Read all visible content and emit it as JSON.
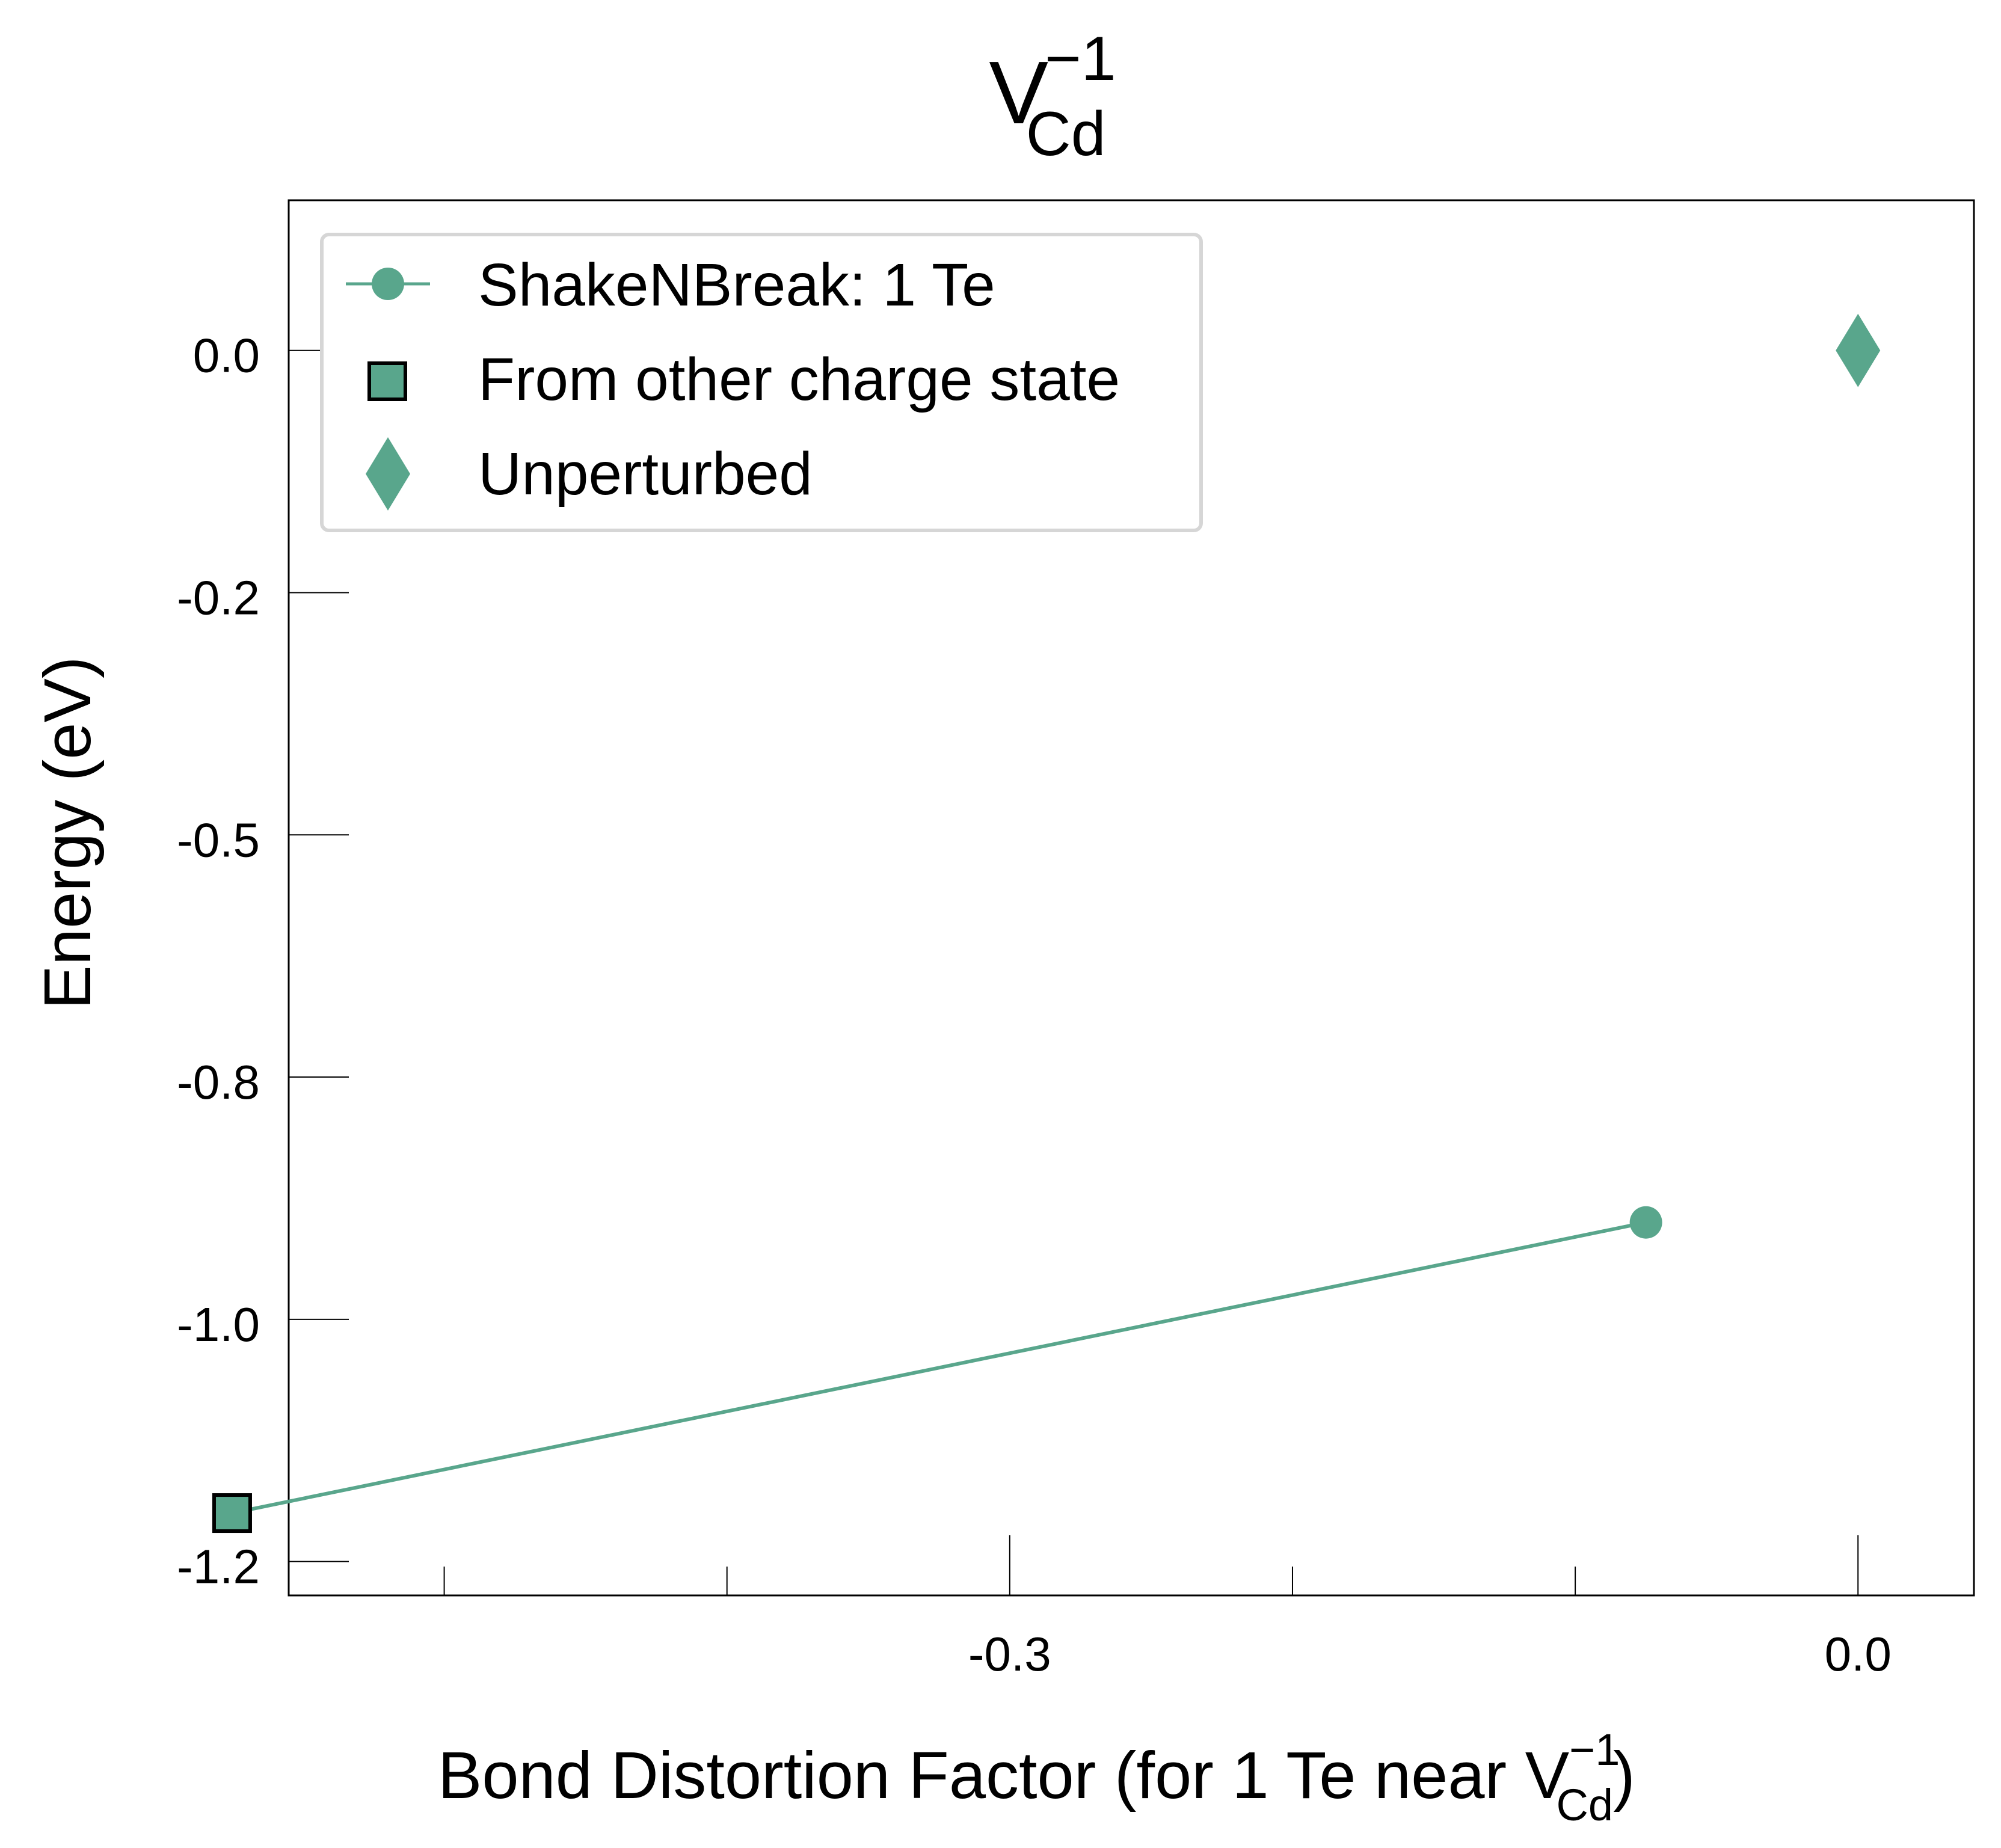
{
  "chart_data": {
    "type": "line",
    "title": {
      "base": "V",
      "sub": "Cd",
      "sup": "−1"
    },
    "xlabel": {
      "prefix": "Bond Distortion Factor (for 1 Te near V",
      "sub": "Cd",
      "sup": "−1",
      "suffix": ")"
    },
    "ylabel": "Energy (eV)",
    "xlim": [
      -0.555,
      0.041
    ],
    "ylim": [
      -1.285,
      0.155
    ],
    "x_ticks": [
      {
        "value": -0.3,
        "label": "-0.3"
      },
      {
        "value": 0.0,
        "label": "0.0"
      }
    ],
    "x_minor_ticks": [
      -0.5,
      -0.4,
      -0.2,
      -0.1
    ],
    "y_ticks": [
      {
        "value": 0.0,
        "label": "0.0"
      },
      {
        "value": -0.25,
        "label": "-0.2"
      },
      {
        "value": -0.5,
        "label": "-0.5"
      },
      {
        "value": -0.75,
        "label": "-0.8"
      },
      {
        "value": -1.0,
        "label": "-1.0"
      },
      {
        "value": -1.25,
        "label": "-1.2"
      }
    ],
    "grid": false,
    "legend": {
      "position": "top-left"
    },
    "colors": {
      "series": "#59a68c",
      "edge": "#000000"
    },
    "series": [
      {
        "name": "ShakeNBreak: 1 Te",
        "marker": "circle",
        "x": [
          -0.575,
          -0.075
        ],
        "y": [
          -1.2,
          -0.9
        ]
      },
      {
        "name": "From other charge state",
        "marker": "square",
        "x": [
          -0.575
        ],
        "y": [
          -1.2
        ]
      },
      {
        "name": "Unperturbed",
        "marker": "diamond",
        "x": [
          0.0
        ],
        "y": [
          0.0
        ]
      }
    ]
  }
}
